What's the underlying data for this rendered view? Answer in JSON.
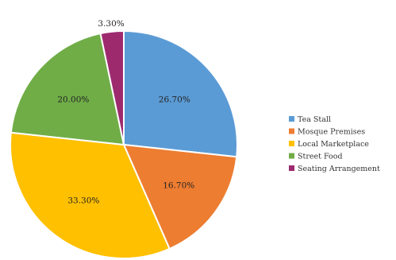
{
  "chart_data": {
    "type": "pie",
    "categories": [
      "Tea Stall",
      "Mosque Premises",
      "Local Marketplace",
      "Street Food",
      "Seating Arrangement"
    ],
    "values": [
      26.7,
      16.7,
      33.3,
      20.0,
      3.3
    ],
    "data_labels": [
      "26.70%",
      "16.70%",
      "33.30%",
      "20.00%",
      "3.30%"
    ],
    "colors": [
      "#5b9bd5",
      "#ed7d31",
      "#ffc000",
      "#70ad47",
      "#9e2a6e"
    ],
    "start_angle_deg": 0,
    "direction": "clockwise",
    "legend_position": "right"
  }
}
